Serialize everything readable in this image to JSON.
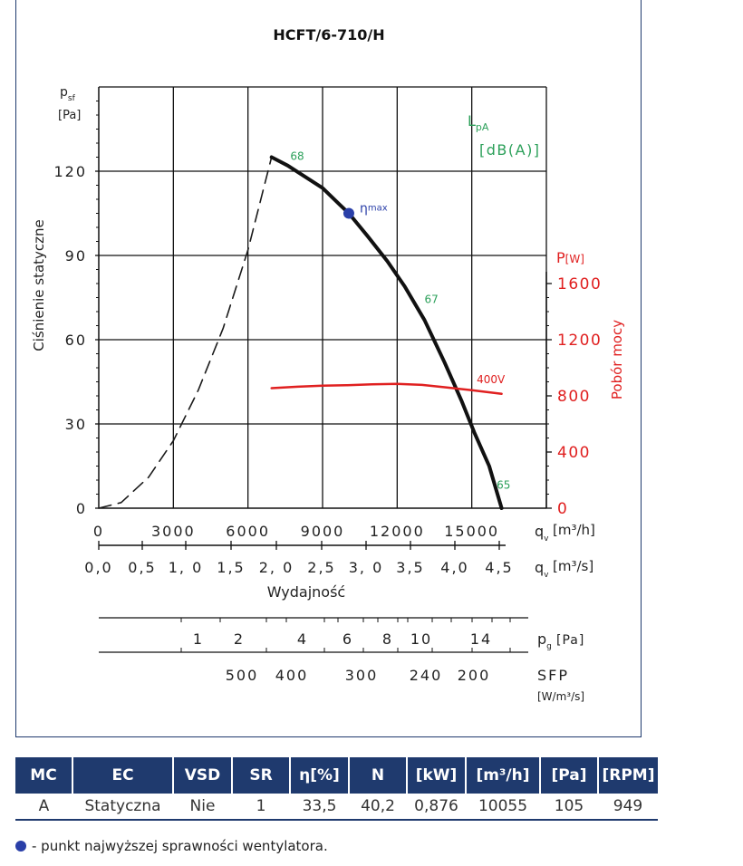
{
  "chart_data": {
    "type": "line",
    "title": "HCFT/6-710/H",
    "y_axis": {
      "label": "Ciśnienie statyczne",
      "symbol": "p",
      "symbol_sub": "sf",
      "unit": "[Pa]",
      "ticks": [
        0,
        30,
        60,
        90,
        120
      ],
      "ylim": [
        0,
        150
      ]
    },
    "x_axis": {
      "label": "Wydajność",
      "symbol": "q",
      "symbol_sub": "v",
      "unit_m3h": "[m³/h]",
      "unit_m3s": "[m³/s]",
      "ticks_m3h": [
        0,
        3000,
        6000,
        9000,
        12000,
        15000
      ],
      "xlim": [
        0,
        18000
      ],
      "ticks_m3s": [
        "0,0",
        "0,5",
        "1, 0",
        "1,5",
        "2, 0",
        "2,5",
        "3, 0",
        "3,5",
        "4,0",
        "4,5"
      ]
    },
    "y2_axis": {
      "label": "Pobór mocy",
      "symbol": "P",
      "unit": "[W]",
      "ticks": [
        0,
        400,
        800,
        1200,
        1600
      ],
      "ylim": [
        0,
        1600
      ]
    },
    "sound_label": {
      "symbol": "L",
      "sub": "pA",
      "unit": "[dB(A)]"
    },
    "series": [
      {
        "role": "unstable",
        "style": "dashed",
        "color": "#1a1a1a",
        "x": [
          0,
          900,
          2000,
          3000,
          4000,
          5000,
          6000,
          6950
        ],
        "y": [
          0,
          2,
          11,
          24,
          42,
          64,
          92,
          125
        ]
      },
      {
        "role": "fan",
        "style": "solid",
        "color": "#111111",
        "x": [
          6950,
          7600,
          8300,
          9000,
          9700,
          10055,
          10800,
          11600,
          12300,
          13100,
          13900,
          14600,
          15100,
          15700,
          16200
        ],
        "y": [
          125,
          122,
          118,
          114,
          108,
          105,
          97,
          88,
          79,
          67,
          52,
          38,
          27,
          15,
          0
        ]
      },
      {
        "role": "power",
        "axis": "y2",
        "style": "solid",
        "color": "#e02020",
        "name": "400V",
        "x": [
          6950,
          8000,
          9000,
          10000,
          11000,
          12000,
          13000,
          14000,
          15000,
          16200
        ],
        "y": [
          855,
          865,
          872,
          876,
          882,
          886,
          878,
          860,
          840,
          815
        ]
      }
    ],
    "points": [
      {
        "label": "η",
        "label_sub": "max",
        "x": 10055,
        "y": 105,
        "color": "#2a3fa8"
      }
    ],
    "annotations": [
      {
        "text": "68",
        "x": 7700,
        "y": 124,
        "color": "#2ca05a"
      },
      {
        "text": "67",
        "x": 13100,
        "y": 73,
        "color": "#2ca05a"
      },
      {
        "text": "65",
        "x": 16000,
        "y": 7,
        "color": "#2ca05a"
      },
      {
        "text": "400V",
        "x": 15200,
        "y": 44.5,
        "color": "#e02020"
      }
    ],
    "pg_scale": {
      "label": "p",
      "label_sub": "g",
      "unit": "[Pa]",
      "ticks": [
        "1",
        "2",
        "4",
        "6",
        "8",
        "10",
        "14"
      ]
    },
    "sfp_scale": {
      "label": "SFP",
      "unit": "[W/m³/s]",
      "ticks": [
        "500",
        "400",
        "300",
        "240",
        "200"
      ]
    },
    "grid": true
  },
  "table": {
    "headers": [
      "MC",
      "EC",
      "VSD",
      "SR",
      "η[%]",
      "N",
      "[kW]",
      "[m³/h]",
      "[Pa]",
      "[RPM]"
    ],
    "rows": [
      [
        "A",
        "Statyczna",
        "Nie",
        "1",
        "33,5",
        "40,2",
        "0,876",
        "10055",
        "105",
        "949"
      ]
    ]
  },
  "legend_note": "- punkt najwyższej sprawności wentylatora.",
  "colors": {
    "navy": "#1f3a6e",
    "red": "#e02020",
    "green": "#2ca05a",
    "blue_point": "#2a3fa8"
  }
}
